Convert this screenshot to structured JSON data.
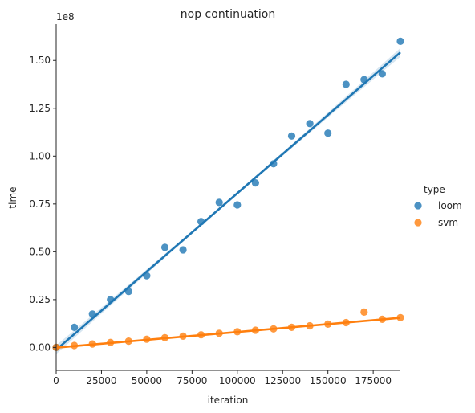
{
  "chart_data": {
    "type": "scatter",
    "title": "nop continuation",
    "xlabel": "iteration",
    "ylabel": "time",
    "y_offset_label": "1e8",
    "xlim": [
      0,
      190000
    ],
    "ylim": [
      -12000000,
      169000000
    ],
    "x_ticks": [
      0,
      25000,
      50000,
      75000,
      100000,
      125000,
      150000,
      175000
    ],
    "x_tick_labels": [
      "0",
      "25000",
      "50000",
      "75000",
      "100000",
      "125000",
      "150000",
      "175000"
    ],
    "y_ticks": [
      0,
      25000000,
      50000000,
      75000000,
      100000000,
      125000000,
      150000000
    ],
    "y_tick_labels": [
      "0.00",
      "0.25",
      "0.50",
      "0.75",
      "1.00",
      "1.25",
      "1.50"
    ],
    "grid": false,
    "legend": {
      "title": "type",
      "position": "right",
      "entries": [
        "loom",
        "svm"
      ]
    },
    "series": [
      {
        "name": "loom",
        "color": "#1f77b4",
        "x": [
          0,
          10000,
          20000,
          30000,
          40000,
          50000,
          60000,
          70000,
          80000,
          90000,
          100000,
          110000,
          120000,
          130000,
          140000,
          150000,
          160000,
          170000,
          180000,
          190000
        ],
        "y": [
          0,
          10500000,
          17500000,
          25000000,
          29300000,
          37500000,
          52300000,
          51000000,
          65800000,
          75800000,
          74500000,
          86000000,
          96000000,
          110500000,
          117000000,
          112000000,
          137500000,
          140000000,
          143000000,
          160000000
        ],
        "fit": {
          "slope": 818,
          "intercept": -1200000
        }
      },
      {
        "name": "svm",
        "color": "#ff7f0e",
        "x": [
          0,
          10000,
          20000,
          30000,
          40000,
          50000,
          60000,
          70000,
          80000,
          90000,
          100000,
          110000,
          120000,
          130000,
          140000,
          150000,
          160000,
          170000,
          180000,
          190000
        ],
        "y": [
          0,
          1000000,
          1800000,
          2600000,
          3300000,
          4300000,
          5100000,
          5900000,
          6600000,
          7400000,
          8200000,
          9000000,
          9700000,
          10500000,
          11300000,
          12200000,
          13000000,
          18500000,
          14700000,
          15600000
        ],
        "fit": {
          "slope": 82,
          "intercept": -100000
        }
      }
    ]
  }
}
